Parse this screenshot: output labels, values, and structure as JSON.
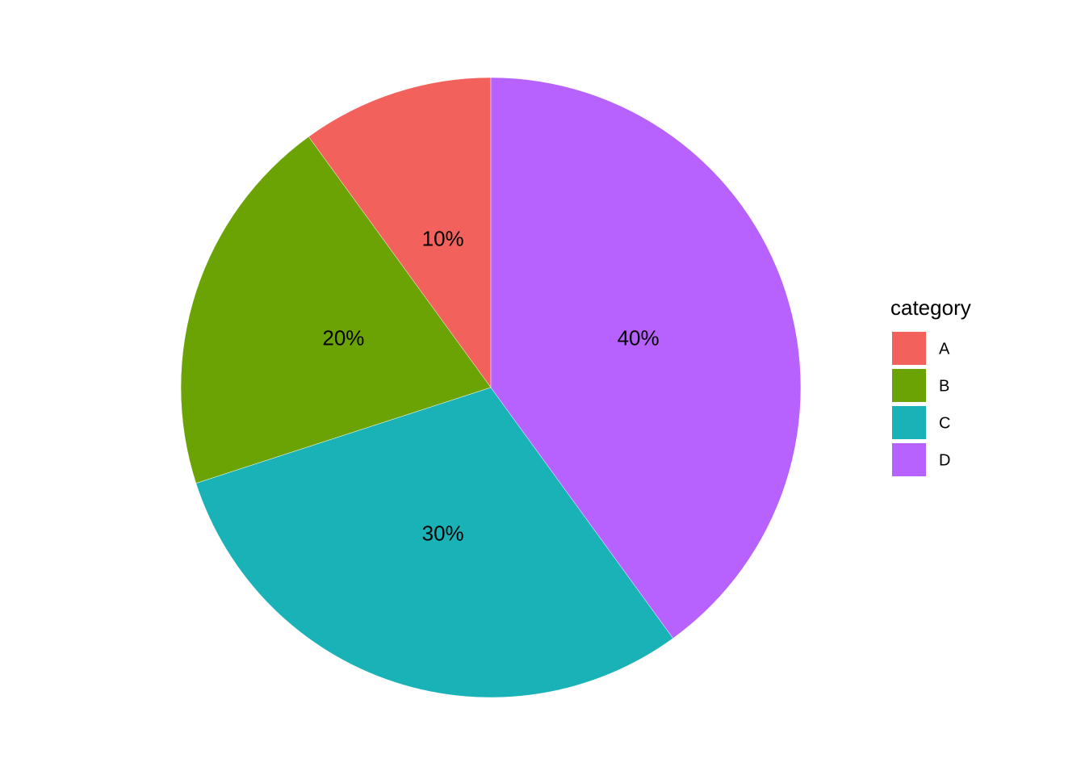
{
  "chart_data": {
    "type": "pie",
    "categories": [
      "A",
      "B",
      "C",
      "D"
    ],
    "values": [
      10,
      20,
      30,
      40
    ],
    "value_labels": [
      "10%",
      "20%",
      "30%",
      "40%"
    ],
    "colors": [
      "#f3615d",
      "#6ba304",
      "#19b3b7",
      "#b762fe"
    ],
    "direction": "counterclockwise",
    "legend_title": "category",
    "legend": "right"
  }
}
